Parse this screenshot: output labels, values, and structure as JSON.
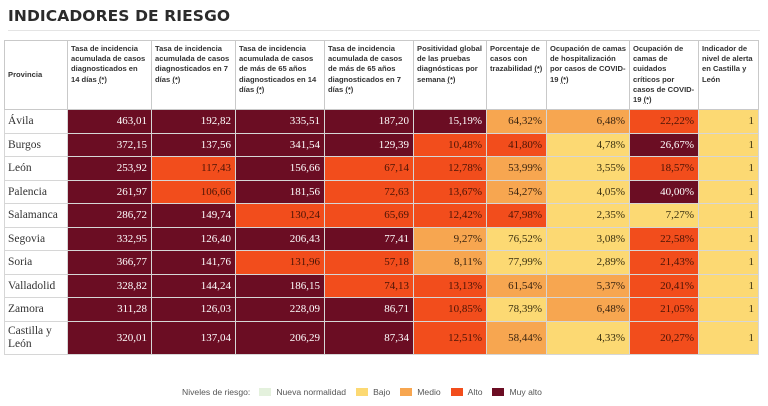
{
  "page": {
    "title": "INDICADORES DE RIESGO"
  },
  "table": {
    "help_marker": "(*)",
    "headers": [
      {
        "text": "Provincia",
        "help": false
      },
      {
        "text": "Tasa de incidencia acumulada de casos diagnosticados en 14 días",
        "help": true
      },
      {
        "text": "Tasa de incidencia acumulada de casos diagnosticados en 7 días",
        "help": true
      },
      {
        "text": "Tasa de incidencia acumulada de casos de más de 65 años diagnosticados en 14 días",
        "help": true
      },
      {
        "text": "Tasa de incidencia acumulada de casos de más de 65 años diagnosticados en 7 días",
        "help": true
      },
      {
        "text": "Positividad global de las pruebas diagnósticas por semana",
        "help": true
      },
      {
        "text": "Porcentaje de casos con trazabilidad",
        "help": true
      },
      {
        "text": "Ocupación de camas de hospitalización por casos de COVID-19",
        "help": true
      },
      {
        "text": "Ocupación de camas de cuidados críticos por casos de COVID-19",
        "help": true
      },
      {
        "text": "Indicador de nivel de alerta en Castilla y León",
        "help": false
      }
    ],
    "rows": [
      {
        "province": "Ávila",
        "cells": [
          {
            "v": "463,01",
            "l": "muy-alto"
          },
          {
            "v": "192,82",
            "l": "muy-alto"
          },
          {
            "v": "335,51",
            "l": "muy-alto"
          },
          {
            "v": "187,20",
            "l": "muy-alto"
          },
          {
            "v": "15,19%",
            "l": "muy-alto"
          },
          {
            "v": "64,32%",
            "l": "medio"
          },
          {
            "v": "6,48%",
            "l": "medio"
          },
          {
            "v": "22,22%",
            "l": "alto"
          },
          {
            "v": "1",
            "l": "bajo"
          }
        ]
      },
      {
        "province": "Burgos",
        "cells": [
          {
            "v": "372,15",
            "l": "muy-alto"
          },
          {
            "v": "137,56",
            "l": "muy-alto"
          },
          {
            "v": "341,54",
            "l": "muy-alto"
          },
          {
            "v": "129,39",
            "l": "muy-alto"
          },
          {
            "v": "10,48%",
            "l": "alto"
          },
          {
            "v": "41,80%",
            "l": "alto"
          },
          {
            "v": "4,78%",
            "l": "bajo"
          },
          {
            "v": "26,67%",
            "l": "muy-alto"
          },
          {
            "v": "1",
            "l": "bajo"
          }
        ]
      },
      {
        "province": "León",
        "cells": [
          {
            "v": "253,92",
            "l": "muy-alto"
          },
          {
            "v": "117,43",
            "l": "alto"
          },
          {
            "v": "156,66",
            "l": "muy-alto"
          },
          {
            "v": "67,14",
            "l": "alto"
          },
          {
            "v": "12,78%",
            "l": "alto"
          },
          {
            "v": "53,99%",
            "l": "medio"
          },
          {
            "v": "3,55%",
            "l": "bajo"
          },
          {
            "v": "18,57%",
            "l": "alto"
          },
          {
            "v": "1",
            "l": "bajo"
          }
        ]
      },
      {
        "province": "Palencia",
        "cells": [
          {
            "v": "261,97",
            "l": "muy-alto"
          },
          {
            "v": "106,66",
            "l": "alto"
          },
          {
            "v": "181,56",
            "l": "muy-alto"
          },
          {
            "v": "72,63",
            "l": "alto"
          },
          {
            "v": "13,67%",
            "l": "alto"
          },
          {
            "v": "54,27%",
            "l": "medio"
          },
          {
            "v": "4,05%",
            "l": "bajo"
          },
          {
            "v": "40,00%",
            "l": "muy-alto"
          },
          {
            "v": "1",
            "l": "bajo"
          }
        ]
      },
      {
        "province": "Salamanca",
        "cells": [
          {
            "v": "286,72",
            "l": "muy-alto"
          },
          {
            "v": "149,74",
            "l": "muy-alto"
          },
          {
            "v": "130,24",
            "l": "alto"
          },
          {
            "v": "65,69",
            "l": "alto"
          },
          {
            "v": "12,42%",
            "l": "alto"
          },
          {
            "v": "47,98%",
            "l": "alto"
          },
          {
            "v": "2,35%",
            "l": "bajo"
          },
          {
            "v": "7,27%",
            "l": "bajo"
          },
          {
            "v": "1",
            "l": "bajo"
          }
        ]
      },
      {
        "province": "Segovia",
        "cells": [
          {
            "v": "332,95",
            "l": "muy-alto"
          },
          {
            "v": "126,40",
            "l": "muy-alto"
          },
          {
            "v": "206,43",
            "l": "muy-alto"
          },
          {
            "v": "77,41",
            "l": "muy-alto"
          },
          {
            "v": "9,27%",
            "l": "medio"
          },
          {
            "v": "76,52%",
            "l": "bajo"
          },
          {
            "v": "3,08%",
            "l": "bajo"
          },
          {
            "v": "22,58%",
            "l": "alto"
          },
          {
            "v": "1",
            "l": "bajo"
          }
        ]
      },
      {
        "province": "Soria",
        "cells": [
          {
            "v": "366,77",
            "l": "muy-alto"
          },
          {
            "v": "141,76",
            "l": "muy-alto"
          },
          {
            "v": "131,96",
            "l": "alto"
          },
          {
            "v": "57,18",
            "l": "alto"
          },
          {
            "v": "8,11%",
            "l": "medio"
          },
          {
            "v": "77,99%",
            "l": "bajo"
          },
          {
            "v": "2,89%",
            "l": "bajo"
          },
          {
            "v": "21,43%",
            "l": "alto"
          },
          {
            "v": "1",
            "l": "bajo"
          }
        ]
      },
      {
        "province": "Valladolid",
        "cells": [
          {
            "v": "328,82",
            "l": "muy-alto"
          },
          {
            "v": "144,24",
            "l": "muy-alto"
          },
          {
            "v": "186,15",
            "l": "muy-alto"
          },
          {
            "v": "74,13",
            "l": "alto"
          },
          {
            "v": "13,13%",
            "l": "alto"
          },
          {
            "v": "61,54%",
            "l": "medio"
          },
          {
            "v": "5,37%",
            "l": "medio"
          },
          {
            "v": "20,41%",
            "l": "alto"
          },
          {
            "v": "1",
            "l": "bajo"
          }
        ]
      },
      {
        "province": "Zamora",
        "cells": [
          {
            "v": "311,28",
            "l": "muy-alto"
          },
          {
            "v": "126,03",
            "l": "muy-alto"
          },
          {
            "v": "228,09",
            "l": "muy-alto"
          },
          {
            "v": "86,71",
            "l": "muy-alto"
          },
          {
            "v": "10,85%",
            "l": "alto"
          },
          {
            "v": "78,39%",
            "l": "bajo"
          },
          {
            "v": "6,48%",
            "l": "medio"
          },
          {
            "v": "21,05%",
            "l": "alto"
          },
          {
            "v": "1",
            "l": "bajo"
          }
        ]
      },
      {
        "province": "Castilla y León",
        "cells": [
          {
            "v": "320,01",
            "l": "muy-alto"
          },
          {
            "v": "137,04",
            "l": "muy-alto"
          },
          {
            "v": "206,29",
            "l": "muy-alto"
          },
          {
            "v": "87,34",
            "l": "muy-alto"
          },
          {
            "v": "12,51%",
            "l": "alto"
          },
          {
            "v": "58,44%",
            "l": "medio"
          },
          {
            "v": "4,33%",
            "l": "bajo"
          },
          {
            "v": "20,27%",
            "l": "alto"
          },
          {
            "v": "1",
            "l": "bajo"
          }
        ]
      }
    ]
  },
  "legend": {
    "label": "Niveles de riesgo:",
    "items": [
      {
        "key": "nueva",
        "label": "Nueva normalidad",
        "color": "#e4f1dd"
      },
      {
        "key": "bajo",
        "label": "Bajo",
        "color": "#fcd973"
      },
      {
        "key": "medio",
        "label": "Medio",
        "color": "#f7a650"
      },
      {
        "key": "alto",
        "label": "Alto",
        "color": "#f24d1c"
      },
      {
        "key": "muy-alto",
        "label": "Muy alto",
        "color": "#6b0d23"
      }
    ]
  }
}
